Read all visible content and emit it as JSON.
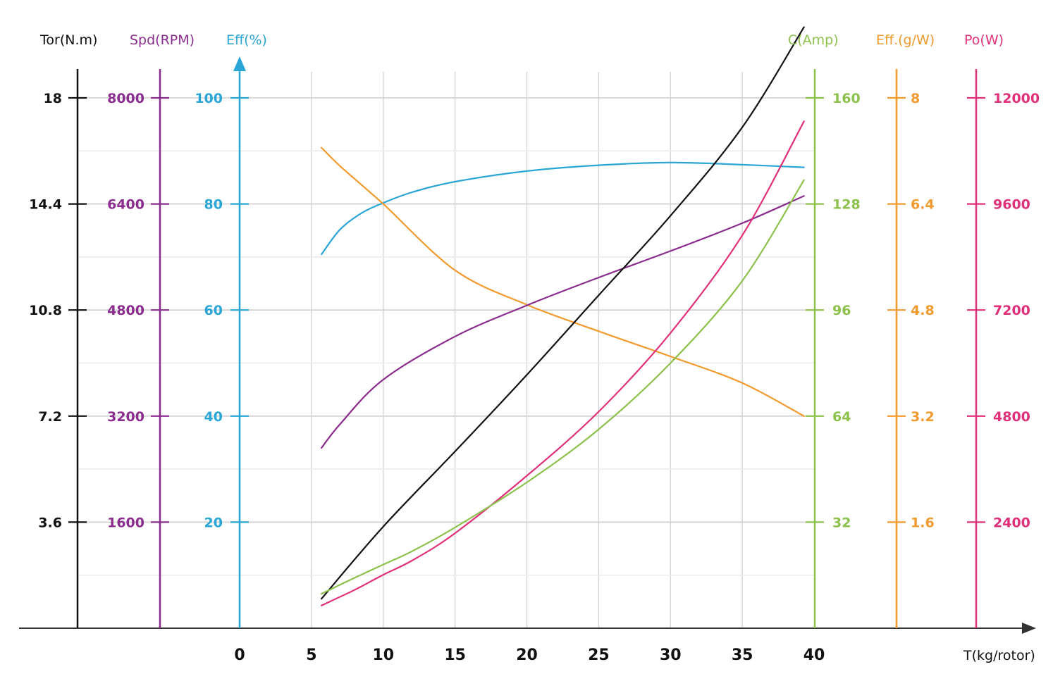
{
  "chart_data": {
    "type": "line",
    "title": "",
    "xlabel": "T(kg/rotor)",
    "x_ticks": [
      "0",
      "5",
      "10",
      "15",
      "20",
      "25",
      "30",
      "35",
      "40"
    ],
    "xlim": [
      0,
      40
    ],
    "grid": true,
    "axes": [
      {
        "id": "tor",
        "title": "Tor(N.m)",
        "color": "#111111",
        "side": "left",
        "ticks": [
          "18",
          "14.4",
          "10.8",
          "7.2",
          "3.6"
        ],
        "range": [
          0,
          18
        ]
      },
      {
        "id": "spd",
        "title": "Spd(RPM)",
        "color": "#8b2d8e",
        "side": "left",
        "ticks": [
          "8000",
          "6400",
          "4800",
          "3200",
          "1600"
        ],
        "range": [
          0,
          8000
        ]
      },
      {
        "id": "eff",
        "title": "Eff(%)",
        "color": "#2aa6d6",
        "side": "left",
        "ticks": [
          "100",
          "80",
          "60",
          "40",
          "20"
        ],
        "range": [
          0,
          100
        ]
      },
      {
        "id": "amp",
        "title": "C(Amp)",
        "color": "#8cc14c",
        "side": "right",
        "ticks": [
          "160",
          "128",
          "96",
          "64",
          "32"
        ],
        "range": [
          0,
          160
        ]
      },
      {
        "id": "gw",
        "title": "Eff.(g/W)",
        "color": "#f29a2e",
        "side": "right",
        "ticks": [
          "8",
          "6.4",
          "4.8",
          "3.2",
          "1.6"
        ],
        "range": [
          0,
          8
        ]
      },
      {
        "id": "po",
        "title": "Po(W)",
        "color": "#e0307a",
        "side": "right",
        "ticks": [
          "12000",
          "9600",
          "7200",
          "4800",
          "2400"
        ],
        "range": [
          0,
          12000
        ]
      }
    ],
    "series": [
      {
        "name": "Eff(%)",
        "axis": "eff",
        "color": "#2aa6d6",
        "x": [
          5.7,
          7,
          8.5,
          10,
          12,
          15,
          20,
          25,
          30,
          35,
          39.3
        ],
        "values": [
          70.5,
          75.2,
          78.3,
          80.2,
          82.2,
          84.2,
          86.2,
          87.3,
          87.8,
          87.4,
          86.9
        ]
      },
      {
        "name": "Eff.(g/W)",
        "axis": "gw",
        "color": "#f29a2e",
        "x": [
          5.7,
          7,
          10,
          15,
          20,
          25,
          30,
          35,
          39.3
        ],
        "values": [
          7.25,
          6.97,
          6.4,
          5.4,
          4.88,
          4.48,
          4.1,
          3.7,
          3.2
        ]
      },
      {
        "name": "Spd(RPM)",
        "axis": "spd",
        "color": "#8b2d8e",
        "x": [
          5.7,
          7,
          10,
          15,
          20,
          25,
          30,
          35,
          39.3
        ],
        "values": [
          2720,
          3080,
          3750,
          4400,
          4870,
          5290,
          5690,
          6110,
          6520
        ]
      },
      {
        "name": "Tor(N.m)",
        "axis": "tor",
        "color": "#111111",
        "x": [
          5.7,
          10,
          15,
          20,
          25,
          30,
          35,
          39.3
        ],
        "values": [
          1.0,
          3.45,
          6.0,
          8.6,
          11.3,
          14.0,
          17.0,
          20.4
        ]
      },
      {
        "name": "Po(W)",
        "axis": "po",
        "color": "#e0307a",
        "x": [
          5.7,
          8,
          10,
          12,
          15,
          20,
          25,
          30,
          35,
          39.3
        ],
        "values": [
          515,
          866,
          1210,
          1530,
          2150,
          3450,
          4900,
          6680,
          8890,
          11470
        ]
      },
      {
        "name": "C(Amp)",
        "axis": "amp",
        "color": "#8cc14c",
        "x": [
          5.7,
          8,
          10,
          12,
          15,
          20,
          25,
          30,
          35,
          39.3
        ],
        "values": [
          10.4,
          15.2,
          19.2,
          23.2,
          30.4,
          44.0,
          60.0,
          80.0,
          104.8,
          135.2
        ]
      }
    ]
  }
}
